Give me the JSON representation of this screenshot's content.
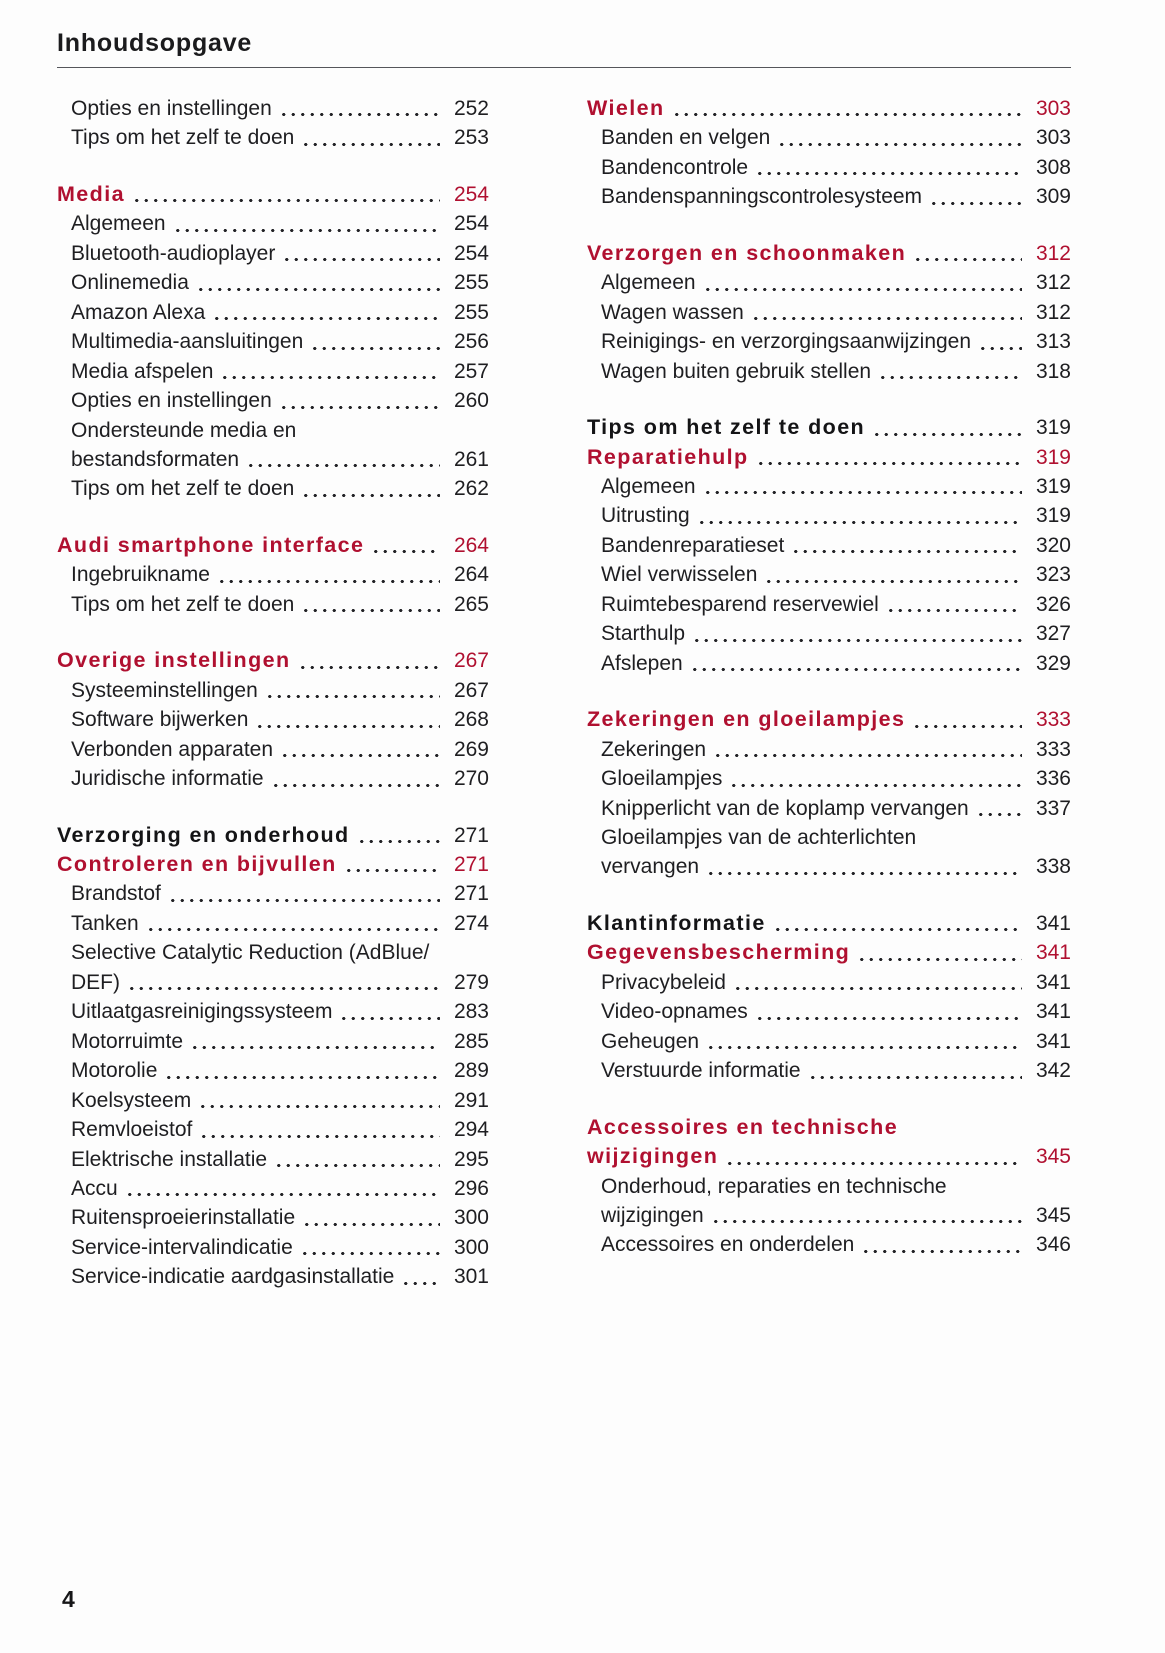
{
  "header": {
    "title": "Inhoudsopgave"
  },
  "footer": {
    "page_number": "4"
  },
  "colors": {
    "accent_red": "#b01030",
    "ink": "#1e1e21",
    "rule_gray": "#55565b"
  },
  "columns": [
    {
      "side": "left",
      "items": [
        {
          "label": "Opties en instellingen",
          "page": "252",
          "type": "sub"
        },
        {
          "label": "Tips om het zelf te doen",
          "page": "253",
          "type": "sub"
        },
        {
          "label": "Media",
          "page": "254",
          "type": "heading-red",
          "gap_before": true
        },
        {
          "label": "Algemeen",
          "page": "254",
          "type": "sub"
        },
        {
          "label": "Bluetooth-audioplayer",
          "page": "254",
          "type": "sub"
        },
        {
          "label": "Onlinemedia",
          "page": "255",
          "type": "sub"
        },
        {
          "label": "Amazon Alexa",
          "page": "255",
          "type": "sub"
        },
        {
          "label": "Multimedia-aansluitingen",
          "page": "256",
          "type": "sub"
        },
        {
          "label": "Media afspelen",
          "page": "257",
          "type": "sub"
        },
        {
          "label": "Opties en instellingen",
          "page": "260",
          "type": "sub"
        },
        {
          "label": "Ondersteunde media en",
          "page": "",
          "type": "sub"
        },
        {
          "label": "bestandsformaten",
          "page": "261",
          "type": "sub"
        },
        {
          "label": "Tips om het zelf te doen",
          "page": "262",
          "type": "sub"
        },
        {
          "label": "Audi smartphone interface",
          "page": "264",
          "type": "heading-red",
          "gap_before": true
        },
        {
          "label": "Ingebruikname",
          "page": "264",
          "type": "sub"
        },
        {
          "label": "Tips om het zelf te doen",
          "page": "265",
          "type": "sub"
        },
        {
          "label": "Overige instellingen",
          "page": "267",
          "type": "heading-red",
          "gap_before": true
        },
        {
          "label": "Systeeminstellingen",
          "page": "267",
          "type": "sub"
        },
        {
          "label": "Software bijwerken",
          "page": "268",
          "type": "sub"
        },
        {
          "label": "Verbonden apparaten",
          "page": "269",
          "type": "sub"
        },
        {
          "label": "Juridische informatie",
          "page": "270",
          "type": "sub"
        },
        {
          "label": "Verzorging en onderhoud",
          "page": "271",
          "type": "heading-black",
          "gap_before": true
        },
        {
          "label": "Controleren en bijvullen",
          "page": "271",
          "type": "heading-red"
        },
        {
          "label": "Brandstof",
          "page": "271",
          "type": "sub"
        },
        {
          "label": "Tanken",
          "page": "274",
          "type": "sub"
        },
        {
          "label": "Selective Catalytic Reduction (AdBlue/",
          "page": "",
          "type": "sub"
        },
        {
          "label": "DEF)",
          "page": "279",
          "type": "sub"
        },
        {
          "label": "Uitlaatgasreinigingssysteem",
          "page": "283",
          "type": "sub"
        },
        {
          "label": "Motorruimte",
          "page": "285",
          "type": "sub"
        },
        {
          "label": "Motorolie",
          "page": "289",
          "type": "sub"
        },
        {
          "label": "Koelsysteem",
          "page": "291",
          "type": "sub"
        },
        {
          "label": "Remvloeistof",
          "page": "294",
          "type": "sub"
        },
        {
          "label": "Elektrische installatie",
          "page": "295",
          "type": "sub"
        },
        {
          "label": "Accu",
          "page": "296",
          "type": "sub"
        },
        {
          "label": "Ruitensproeierinstallatie",
          "page": "300",
          "type": "sub"
        },
        {
          "label": "Service-intervalindicatie",
          "page": "300",
          "type": "sub"
        },
        {
          "label": "Service-indicatie aardgasinstallatie",
          "page": "301",
          "type": "sub"
        }
      ]
    },
    {
      "side": "right",
      "items": [
        {
          "label": "Wielen",
          "page": "303",
          "type": "heading-red"
        },
        {
          "label": "Banden en velgen",
          "page": "303",
          "type": "sub"
        },
        {
          "label": "Bandencontrole",
          "page": "308",
          "type": "sub"
        },
        {
          "label": "Bandenspanningscontrolesysteem",
          "page": "309",
          "type": "sub"
        },
        {
          "label": "Verzorgen en schoonmaken",
          "page": "312",
          "type": "heading-red",
          "gap_before": true
        },
        {
          "label": "Algemeen",
          "page": "312",
          "type": "sub"
        },
        {
          "label": "Wagen wassen",
          "page": "312",
          "type": "sub"
        },
        {
          "label": "Reinigings- en verzorgingsaanwijzingen",
          "page": "313",
          "type": "sub"
        },
        {
          "label": "Wagen buiten gebruik stellen",
          "page": "318",
          "type": "sub"
        },
        {
          "label": "Tips om het zelf te doen",
          "page": "319",
          "type": "heading-black",
          "gap_before": true
        },
        {
          "label": "Reparatiehulp",
          "page": "319",
          "type": "heading-red"
        },
        {
          "label": "Algemeen",
          "page": "319",
          "type": "sub"
        },
        {
          "label": "Uitrusting",
          "page": "319",
          "type": "sub"
        },
        {
          "label": "Bandenreparatieset",
          "page": "320",
          "type": "sub"
        },
        {
          "label": "Wiel verwisselen",
          "page": "323",
          "type": "sub"
        },
        {
          "label": "Ruimtebesparend reservewiel",
          "page": "326",
          "type": "sub"
        },
        {
          "label": "Starthulp",
          "page": "327",
          "type": "sub"
        },
        {
          "label": "Afslepen",
          "page": "329",
          "type": "sub"
        },
        {
          "label": "Zekeringen en gloeilampjes",
          "page": "333",
          "type": "heading-red",
          "gap_before": true
        },
        {
          "label": "Zekeringen",
          "page": "333",
          "type": "sub"
        },
        {
          "label": "Gloeilampjes",
          "page": "336",
          "type": "sub"
        },
        {
          "label": "Knipperlicht van de koplamp vervangen",
          "page": "337",
          "type": "sub"
        },
        {
          "label": "Gloeilampjes van de achterlichten",
          "page": "",
          "type": "sub"
        },
        {
          "label": "vervangen",
          "page": "338",
          "type": "sub"
        },
        {
          "label": "Klantinformatie",
          "page": "341",
          "type": "heading-black",
          "gap_before": true
        },
        {
          "label": "Gegevensbescherming",
          "page": "341",
          "type": "heading-red"
        },
        {
          "label": "Privacybeleid",
          "page": "341",
          "type": "sub"
        },
        {
          "label": "Video-opnames",
          "page": "341",
          "type": "sub"
        },
        {
          "label": "Geheugen",
          "page": "341",
          "type": "sub"
        },
        {
          "label": "Verstuurde informatie",
          "page": "342",
          "type": "sub"
        },
        {
          "label": "Accessoires en technische",
          "page": "",
          "type": "heading-red",
          "gap_before": true
        },
        {
          "label": "wijzigingen",
          "page": "345",
          "type": "heading-red"
        },
        {
          "label": "Onderhoud, reparaties en technische",
          "page": "",
          "type": "sub"
        },
        {
          "label": "wijzigingen",
          "page": "345",
          "type": "sub"
        },
        {
          "label": "Accessoires en onderdelen",
          "page": "346",
          "type": "sub"
        }
      ]
    }
  ]
}
